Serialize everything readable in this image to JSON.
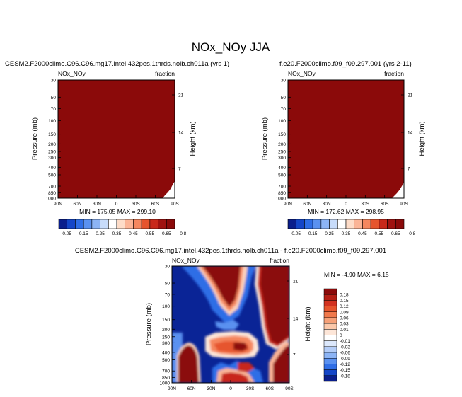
{
  "page_title": "NOx_NOy JJA",
  "colors": {
    "saturated": "#8b0a0a",
    "panel_levels": [
      "#0a1e8c",
      "#1446c8",
      "#2f6ee6",
      "#5a91f0",
      "#8cb4f5",
      "#c8dcfa",
      "#ffffff",
      "#fddcc8",
      "#fbb496",
      "#f5875f",
      "#e6552d",
      "#c8281a",
      "#a01210",
      "#8b0a0a"
    ],
    "diff_levels": [
      "#0a1e8c",
      "#1446c8",
      "#2f6ee6",
      "#5a91f0",
      "#8cb4f5",
      "#b4cdf8",
      "#dce8fc",
      "#ffffff",
      "#fde6d8",
      "#fbc8aa",
      "#f5a078",
      "#f0784b",
      "#e6552d",
      "#d23220",
      "#b41e14",
      "#8b0a0a"
    ]
  },
  "chart_data": [
    {
      "type": "heatmap",
      "title": "CESM2.F2000climo.C96.C96.mg17.intel.432pes.1thrds.nolb.ch011a (yrs 1)",
      "left_label": "NOx_NOy",
      "right_label": "fraction",
      "ylabel": "Pressure (mb)",
      "ylabel_right": "Height (km)",
      "x_ticks": [
        "90N",
        "60N",
        "30N",
        "0",
        "30S",
        "60S",
        "90S"
      ],
      "y_ticks": [
        "30",
        "50",
        "70",
        "100",
        "150",
        "200",
        "250",
        "300",
        "400",
        "500",
        "700",
        "850",
        "1000"
      ],
      "y_ticks_right": [
        "21",
        "14",
        "7"
      ],
      "stats": "MIN = 175.05  MAX = 299.10",
      "colorbar_labels": [
        "0.05",
        "0.15",
        "0.25",
        "0.35",
        "0.45",
        "0.55",
        "0.65",
        "0.8"
      ]
    },
    {
      "type": "heatmap",
      "title": "f.e20.F2000climo.f09_f09.297.001 (yrs 2-11)",
      "left_label": "NOx_NOy",
      "right_label": "fraction",
      "ylabel": "Pressure (mb)",
      "ylabel_right": "Height (km)",
      "x_ticks": [
        "90N",
        "60N",
        "30N",
        "0",
        "30S",
        "60S",
        "90S"
      ],
      "y_ticks": [
        "30",
        "50",
        "70",
        "100",
        "150",
        "200",
        "250",
        "300",
        "400",
        "500",
        "700",
        "850",
        "1000"
      ],
      "y_ticks_right": [
        "21",
        "14",
        "7"
      ],
      "stats": "MIN = 172.62  MAX = 298.95",
      "colorbar_labels": [
        "0.05",
        "0.15",
        "0.25",
        "0.35",
        "0.45",
        "0.55",
        "0.65",
        "0.8"
      ]
    },
    {
      "type": "heatmap",
      "title": "CESM2.F2000climo.C96.C96.mg17.intel.432pes.1thrds.nolb.ch011a - f.e20.F2000climo.f09_f09.297.001",
      "left_label": "NOx_NOy",
      "right_label": "fraction",
      "ylabel": "Pressure (mb)",
      "ylabel_right": "Height (km)",
      "x_ticks": [
        "90N",
        "60N",
        "30N",
        "0",
        "30S",
        "60S",
        "90S"
      ],
      "y_ticks": [
        "30",
        "50",
        "70",
        "100",
        "150",
        "200",
        "250",
        "300",
        "400",
        "500",
        "700",
        "850",
        "1000"
      ],
      "y_ticks_right": [
        "21",
        "14",
        "7"
      ],
      "stats": "MIN =  -4.90  MAX =  6.15",
      "colorbar_labels": [
        "0.18",
        "0.15",
        "0.12",
        "0.09",
        "0.06",
        "0.03",
        "0.01",
        "0",
        "-0.01",
        "-0.03",
        "-0.06",
        "-0.09",
        "-0.12",
        "-0.15",
        "-0.18"
      ]
    }
  ]
}
